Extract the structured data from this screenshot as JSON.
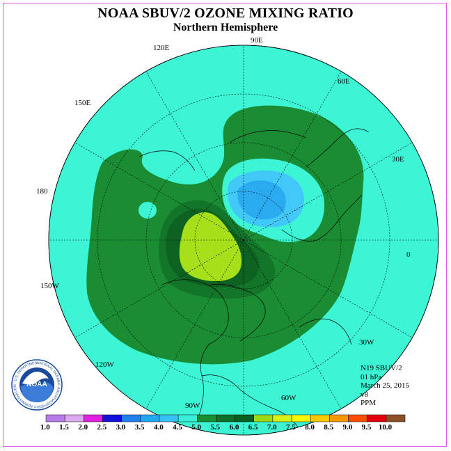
{
  "title": "NOAA SBUV/2 OZONE MIXING RATIO",
  "subtitle": "Northern Hemisphere",
  "longitude_labels": {
    "lon_90E": "90E",
    "lon_60E": "60E",
    "lon_30E": "30E",
    "lon_0": "0",
    "lon_30W": "30W",
    "lon_60W": "60W",
    "lon_90W": "90W",
    "lon_120W": "120W",
    "lon_150W": "150W",
    "lon_180": "180",
    "lon_150E": "150E",
    "lon_120E": "120E"
  },
  "info": {
    "satellite": "N19 SBUV/2",
    "level": "01 hPa",
    "date": "March 25, 2015",
    "version": "v8",
    "units": "PPM"
  },
  "colorbar": {
    "labels": [
      "1.0",
      "1.5",
      "2.0",
      "2.5",
      "3.0",
      "3.5",
      "4.0",
      "4.5",
      "5.0",
      "5.5",
      "6.0",
      "6.5",
      "7.0",
      "7.5",
      "8.0",
      "8.5",
      "9.0",
      "9.5",
      "10.0"
    ],
    "colors": [
      "#b87ce8",
      "#dca8f0",
      "#e020e0",
      "#1010d8",
      "#2080ec",
      "#20a8f0",
      "#38c0f8",
      "#38f0d8",
      "#189030",
      "#107028",
      "#086020",
      "#a0d818",
      "#d8f018",
      "#f8f800",
      "#f8c800",
      "#f89800",
      "#f85000",
      "#e00010",
      "#8c5028"
    ]
  },
  "map_colors": {
    "ocean": "#3cf5d4",
    "contour_5_0": "#1a8c34",
    "contour_5_5": "#137529",
    "contour_6_0": "#0d6222",
    "contour_6_5": "#a6e01a",
    "low_4_0": "#40c8f8",
    "low_3_5": "#2aaaf0"
  },
  "logo": {
    "text": "NOAA",
    "ring_text": "NATIONAL OCEANIC AND ATMOSPHERIC ADMINISTRATION · U.S. DEPARTMENT OF COMMERCE"
  }
}
